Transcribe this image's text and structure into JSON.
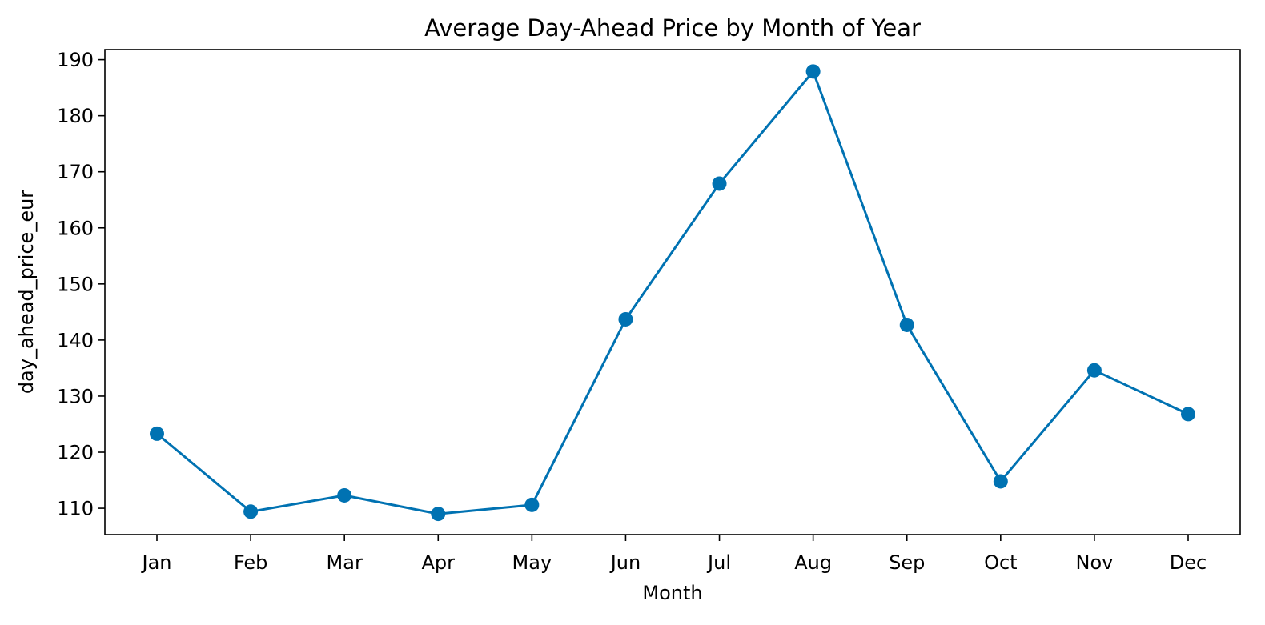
{
  "chart_data": {
    "type": "line",
    "title": "Average Day-Ahead Price by Month of Year",
    "xlabel": "Month",
    "ylabel": "day_ahead_price_eur",
    "categories": [
      "Jan",
      "Feb",
      "Mar",
      "Apr",
      "May",
      "Jun",
      "Jul",
      "Aug",
      "Sep",
      "Oct",
      "Nov",
      "Dec"
    ],
    "series": [
      {
        "values": [
          123.3,
          109.4,
          112.3,
          109.0,
          110.6,
          143.7,
          167.9,
          187.9,
          142.7,
          114.8,
          134.6,
          126.8
        ],
        "color": "#0072b2",
        "marker": "circle"
      }
    ],
    "ylim": [
      105.3,
      191.8
    ],
    "yticks": [
      110,
      120,
      130,
      140,
      150,
      160,
      170,
      180,
      190
    ],
    "grid": false,
    "legend": "none"
  }
}
